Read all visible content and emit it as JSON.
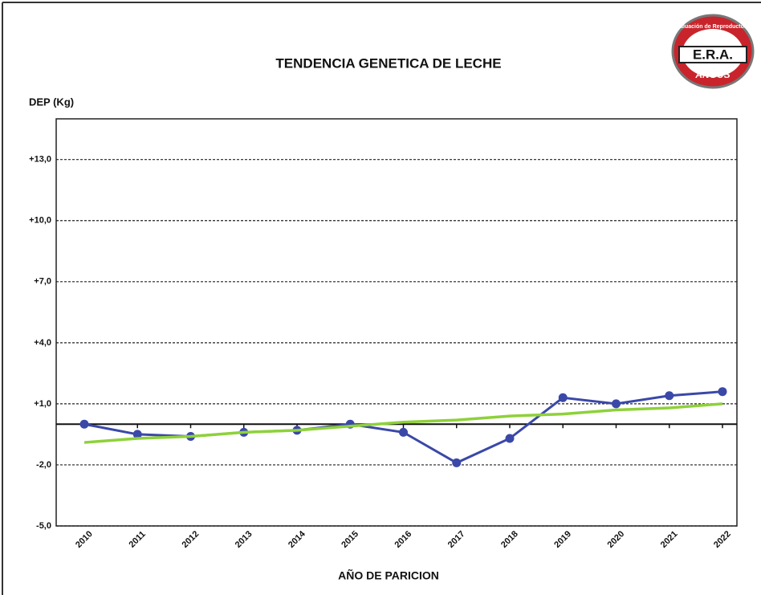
{
  "chart_data": {
    "type": "line",
    "title": "TENDENCIA GENETICA DE LECHE",
    "y_label": "DEP (Kg)",
    "x_label": "AÑO DE PARICION",
    "logo": {
      "top": "Evaluación de Reproductores",
      "center": "E.R.A.",
      "bottom": "ANGUS"
    },
    "categories": [
      "2010",
      "2011",
      "2012",
      "2013",
      "2014",
      "2015",
      "2016",
      "2017",
      "2018",
      "2019",
      "2020",
      "2021",
      "2022"
    ],
    "series": [
      {
        "color": "#3a48a8",
        "markers": true,
        "values": [
          0,
          -0.5,
          -0.6,
          -0.4,
          -0.3,
          0,
          -0.4,
          -1.9,
          -0.7,
          1.3,
          1.0,
          1.4,
          1.6
        ]
      },
      {
        "color": "#8ed13a",
        "markers": false,
        "values": [
          -0.9,
          -0.7,
          -0.6,
          -0.4,
          -0.3,
          -0.1,
          0.1,
          0.2,
          0.4,
          0.5,
          0.7,
          0.8,
          1.0
        ]
      }
    ],
    "ylim": [
      -5,
      15
    ],
    "yticks": [
      {
        "value": -5,
        "label": "-5,0"
      },
      {
        "value": -2,
        "label": "-2,0"
      },
      {
        "value": 1,
        "label": "+1,0"
      },
      {
        "value": 4,
        "label": "+4,0"
      },
      {
        "value": 7,
        "label": "+7,0"
      },
      {
        "value": 10,
        "label": "+10,0"
      },
      {
        "value": 13,
        "label": "+13,0"
      }
    ],
    "grid": true
  }
}
